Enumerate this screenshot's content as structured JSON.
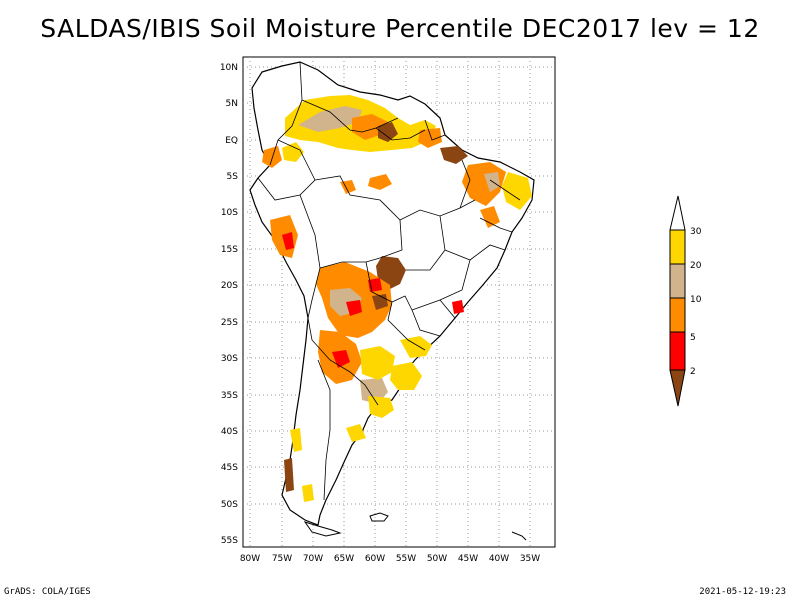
{
  "title": "SALDAS/IBIS Soil Moisture Percentile DEC2017 lev = 12",
  "footer_left": "GrADS: COLA/IGES",
  "footer_right": "2021-05-12-19:23",
  "map": {
    "region": "South America",
    "lon_range": [
      -81,
      -30
    ],
    "lat_range": [
      -56,
      11
    ],
    "lat_ticks": [
      "10N",
      "5N",
      "EQ",
      "5S",
      "10S",
      "15S",
      "20S",
      "25S",
      "30S",
      "35S",
      "40S",
      "45S",
      "50S",
      "55S"
    ],
    "lon_ticks": [
      "80W",
      "75W",
      "70W",
      "65W",
      "60W",
      "55W",
      "50W",
      "45W",
      "40W",
      "35W"
    ],
    "grid": true,
    "grid_style": "dotted"
  },
  "legend": {
    "labels": [
      "30",
      "20",
      "10",
      "5",
      "2"
    ],
    "colors": {
      "top_arrow": "#ffffff",
      "band_20_30": "#ffd700",
      "band_10_20": "#d2b48c",
      "band_5_10": "#ff8c00",
      "band_2_5": "#ff0000",
      "bottom_arrow": "#8b4513"
    }
  }
}
